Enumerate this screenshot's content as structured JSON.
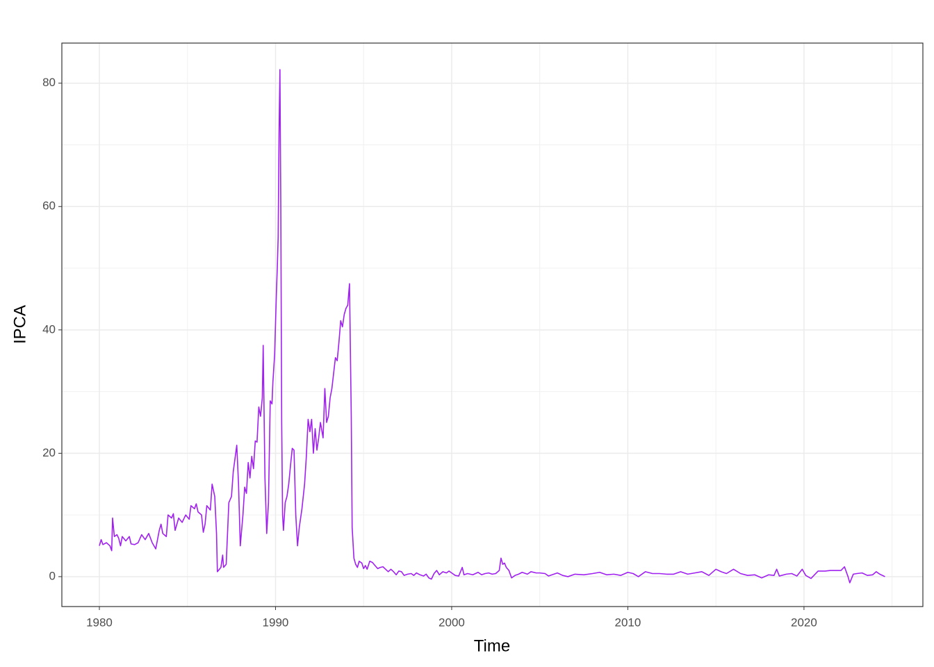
{
  "chart_data": {
    "type": "line",
    "x_label": "Time",
    "y_label": "IPCA",
    "xlim": [
      1977.87,
      2026.75
    ],
    "ylim": [
      -4.85,
      86.5
    ],
    "xticks": [
      1980,
      1990,
      2000,
      2010,
      2020
    ],
    "yticks": [
      0,
      20,
      40,
      60,
      80
    ],
    "xticks_minor": [
      1985,
      1995,
      2005,
      2015,
      2025
    ],
    "yticks_minor": [
      10,
      30,
      50,
      70
    ],
    "grid": true,
    "x": [
      1980.0,
      1980.1,
      1980.2,
      1980.4,
      1980.6,
      1980.7,
      1980.75,
      1980.85,
      1981.0,
      1981.1,
      1981.2,
      1981.3,
      1981.5,
      1981.7,
      1981.8,
      1982.0,
      1982.2,
      1982.4,
      1982.6,
      1982.8,
      1983.0,
      1983.2,
      1983.4,
      1983.5,
      1983.6,
      1983.8,
      1983.9,
      1984.1,
      1984.2,
      1984.3,
      1984.5,
      1984.7,
      1984.9,
      1985.1,
      1985.2,
      1985.4,
      1985.5,
      1985.6,
      1985.8,
      1985.9,
      1986.0,
      1986.1,
      1986.3,
      1986.4,
      1986.55,
      1986.65,
      1986.7,
      1986.9,
      1987.0,
      1987.05,
      1987.2,
      1987.35,
      1987.5,
      1987.6,
      1987.8,
      1987.9,
      1988.0,
      1988.15,
      1988.25,
      1988.35,
      1988.45,
      1988.55,
      1988.65,
      1988.75,
      1988.85,
      1988.95,
      1989.05,
      1989.15,
      1989.25,
      1989.3,
      1989.4,
      1989.5,
      1989.6,
      1989.7,
      1989.8,
      1989.85,
      1989.95,
      1990.0,
      1990.05,
      1990.1,
      1990.15,
      1990.2,
      1990.25,
      1990.3,
      1990.35,
      1990.4,
      1990.45,
      1990.55,
      1990.65,
      1990.75,
      1990.85,
      1990.95,
      1991.05,
      1991.15,
      1991.25,
      1991.35,
      1991.5,
      1991.65,
      1991.75,
      1991.85,
      1991.95,
      1992.05,
      1992.15,
      1992.25,
      1992.35,
      1992.45,
      1992.55,
      1992.7,
      1992.8,
      1992.9,
      1993.0,
      1993.1,
      1993.2,
      1993.3,
      1993.4,
      1993.5,
      1993.6,
      1993.7,
      1993.8,
      1993.9,
      1994.0,
      1994.1,
      1994.2,
      1994.3,
      1994.35,
      1994.45,
      1994.55,
      1994.65,
      1994.75,
      1994.9,
      1995.0,
      1995.1,
      1995.2,
      1995.35,
      1995.5,
      1995.65,
      1995.8,
      1995.95,
      1996.1,
      1996.25,
      1996.4,
      1996.55,
      1996.7,
      1996.85,
      1997.0,
      1997.15,
      1997.3,
      1997.5,
      1997.7,
      1997.85,
      1998.0,
      1998.2,
      1998.4,
      1998.55,
      1998.7,
      1998.85,
      1999.0,
      1999.15,
      1999.3,
      1999.5,
      1999.7,
      1999.85,
      2000.0,
      2000.2,
      2000.4,
      2000.6,
      2000.7,
      2000.9,
      2001.2,
      2001.5,
      2001.7,
      2001.9,
      2002.1,
      2002.3,
      2002.5,
      2002.7,
      2002.8,
      2002.9,
      2003.0,
      2003.1,
      2003.25,
      2003.4,
      2003.6,
      2003.8,
      2004.0,
      2004.3,
      2004.5,
      2004.8,
      2005.0,
      2005.3,
      2005.5,
      2005.8,
      2006.0,
      2006.3,
      2006.6,
      2007.0,
      2007.5,
      2008.0,
      2008.4,
      2008.8,
      2009.2,
      2009.6,
      2010.0,
      2010.3,
      2010.6,
      2011.0,
      2011.4,
      2011.8,
      2012.2,
      2012.6,
      2013.0,
      2013.4,
      2013.8,
      2014.2,
      2014.6,
      2015.0,
      2015.3,
      2015.6,
      2016.0,
      2016.4,
      2016.8,
      2017.2,
      2017.6,
      2018.0,
      2018.3,
      2018.45,
      2018.6,
      2019.0,
      2019.3,
      2019.6,
      2019.9,
      2020.1,
      2020.4,
      2020.8,
      2021.2,
      2021.5,
      2021.8,
      2022.1,
      2022.3,
      2022.5,
      2022.6,
      2022.8,
      2023.0,
      2023.3,
      2023.6,
      2023.9,
      2024.1,
      2024.3,
      2024.6
    ],
    "series": [
      {
        "color": "#a020f0",
        "values": [
          5,
          6,
          5.2,
          5.5,
          5,
          4.2,
          9.5,
          6.5,
          6.8,
          6.2,
          5,
          6.5,
          5.8,
          6.5,
          5.3,
          5.2,
          5.5,
          6.8,
          6.0,
          7.0,
          5.5,
          4.5,
          7.5,
          8.5,
          7.0,
          6.5,
          10,
          9.5,
          10.2,
          7.5,
          9.5,
          8.8,
          10,
          9.3,
          11.5,
          11,
          11.8,
          10.5,
          10,
          7.2,
          8.5,
          11.5,
          10.8,
          15,
          13,
          7,
          0.8,
          1.5,
          3.5,
          1.5,
          2,
          12,
          13,
          17,
          21.3,
          15,
          5,
          10,
          14.5,
          13.5,
          18.5,
          16,
          19.5,
          17.5,
          22,
          21.8,
          27.5,
          26,
          29,
          37.5,
          16,
          7,
          12,
          28.5,
          28,
          31.5,
          36,
          41,
          46,
          50,
          55,
          72,
          82.2,
          60,
          25,
          10,
          7.5,
          12,
          13,
          15,
          18,
          20.8,
          20.5,
          10,
          5,
          8,
          11,
          15,
          19.5,
          25.5,
          23.5,
          25.5,
          20,
          24,
          20.5,
          22.5,
          25,
          22.5,
          30.5,
          25,
          26,
          29,
          30.5,
          33,
          35.5,
          35,
          38,
          41.5,
          40.5,
          42.5,
          43.5,
          44,
          47.5,
          26,
          8,
          3,
          2,
          1.5,
          2.5,
          2.2,
          1.3,
          1.8,
          1.2,
          2.5,
          2.3,
          1.8,
          1.3,
          1.5,
          1.6,
          1.2,
          0.8,
          1.2,
          0.8,
          0.3,
          0.9,
          0.8,
          0.2,
          0.4,
          0.5,
          0.2,
          0.6,
          0.3,
          0.1,
          0.4,
          -0.2,
          -0.4,
          0.5,
          1.0,
          0.3,
          0.8,
          0.6,
          0.9,
          0.6,
          0.2,
          0.1,
          1.5,
          0.3,
          0.5,
          0.3,
          0.7,
          0.3,
          0.5,
          0.6,
          0.4,
          0.5,
          1.0,
          3.0,
          2.0,
          2.2,
          1.5,
          1.0,
          -0.2,
          0.2,
          0.4,
          0.7,
          0.4,
          0.8,
          0.6,
          0.6,
          0.5,
          0.1,
          0.4,
          0.6,
          0.2,
          0.0,
          0.4,
          0.3,
          0.5,
          0.7,
          0.3,
          0.4,
          0.2,
          0.7,
          0.5,
          0.0,
          0.8,
          0.5,
          0.5,
          0.4,
          0.4,
          0.8,
          0.4,
          0.6,
          0.8,
          0.2,
          1.2,
          0.8,
          0.5,
          1.2,
          0.5,
          0.2,
          0.3,
          -0.2,
          0.3,
          0.2,
          1.2,
          0.1,
          0.4,
          0.5,
          0.1,
          1.2,
          0.2,
          -0.3,
          0.9,
          0.9,
          1.0,
          1.0,
          1.0,
          1.6,
          0.0,
          -1.0,
          0.4,
          0.5,
          0.6,
          0.2,
          0.3,
          0.8,
          0.4,
          0.0
        ]
      }
    ]
  }
}
